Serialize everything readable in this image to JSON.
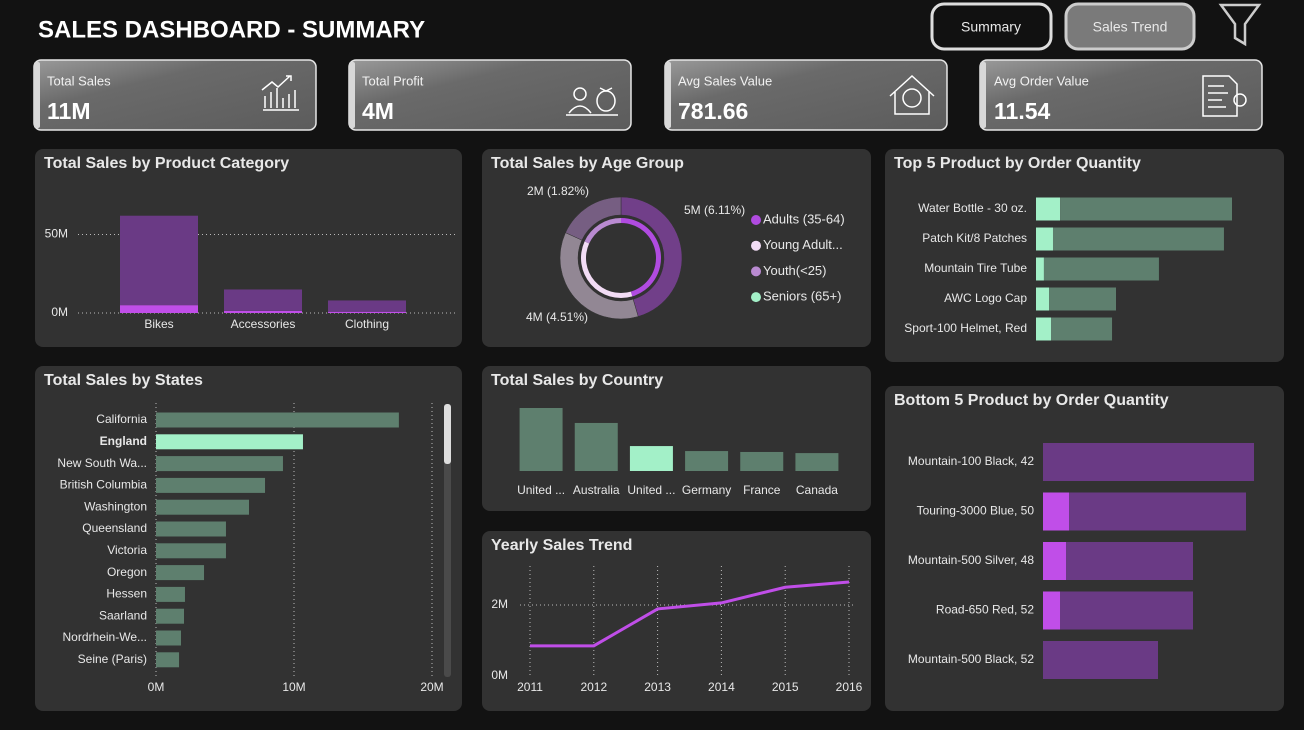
{
  "header": {
    "title": "SALES DASHBOARD - SUMMARY",
    "buttons": [
      "Summary",
      "Sales Trend"
    ]
  },
  "kpis": [
    {
      "label": "Total Sales",
      "value": "11M"
    },
    {
      "label": "Total Profit",
      "value": "4M"
    },
    {
      "label": "Avg Sales Value",
      "value": "781.66"
    },
    {
      "label": "Avg Order Value",
      "value": "11.54"
    }
  ],
  "chart_data": [
    {
      "type": "bar",
      "title": "Total Sales by Product Category",
      "categories": [
        "Bikes",
        "Accessories",
        "Clothing"
      ],
      "series": [
        {
          "color": "#c04ee8",
          "values": [
            5,
            1.3,
            0.8
          ]
        },
        {
          "color": "#6a3a85",
          "values": [
            57,
            13.7,
            7.2
          ]
        }
      ],
      "ylim": [
        0,
        65
      ],
      "yticks": [
        {
          "value": 0,
          "label": "0M"
        },
        {
          "value": 50,
          "label": "50M"
        }
      ],
      "grid": true
    },
    {
      "type": "donut",
      "title": "Total Sales by Age Group",
      "categories": [
        "Adults (35-64)",
        "Young Adult...",
        "Youth(<25)",
        "Seniors (65+)"
      ],
      "values": [
        5,
        4,
        2,
        null
      ],
      "value_labels": [
        "5M (6.11%)",
        "4M (4.51%)",
        "2M (1.82%)",
        null
      ],
      "colors": [
        "#b04be0",
        "#f2dcf5",
        "#b98ad1",
        "#a3f0c8"
      ]
    },
    {
      "type": "hbar",
      "title": "Top 5 Product by Order Quantity",
      "categories": [
        "Water Bottle - 30 oz.",
        "Patch Kit/8 Patches",
        "Mountain Tire Tube",
        "AWC Logo Cap",
        "Sport-100 Helmet, Red"
      ],
      "series": [
        {
          "color": "#a3f0c8",
          "values": [
            970,
            685,
            320,
            525,
            605
          ]
        },
        {
          "color": "#5e7f6e",
          "values": [
            6930,
            6890,
            4635,
            2700,
            2460
          ]
        }
      ]
    },
    {
      "type": "hbar",
      "title": "Total Sales by States",
      "categories": [
        "California",
        "England",
        "New South Wa...",
        "British Columbia",
        "Washington",
        "Queensland",
        "Victoria",
        "Oregon",
        "Hessen",
        "Saarland",
        "Nordrhein-We...",
        "Seine (Paris)"
      ],
      "values": [
        17.6,
        10.65,
        9.2,
        7.9,
        6.74,
        5.07,
        5.07,
        3.48,
        2.1,
        2.03,
        1.81,
        1.67
      ],
      "colors": [
        "#5e7f6e",
        "#a3f0c8",
        "#5e7f6e",
        "#5e7f6e",
        "#5e7f6e",
        "#5e7f6e",
        "#5e7f6e",
        "#5e7f6e",
        "#5e7f6e",
        "#5e7f6e",
        "#5e7f6e",
        "#5e7f6e"
      ],
      "xlim": [
        0,
        20
      ],
      "xticks": [
        {
          "value": 0,
          "label": "0M"
        },
        {
          "value": 10,
          "label": "10M"
        },
        {
          "value": 20,
          "label": "20M"
        }
      ],
      "grid": true
    },
    {
      "type": "bar",
      "title": "Total Sales by Country",
      "categories": [
        "United ...",
        "Australia",
        "United ...",
        "Germany",
        "France",
        "Canada"
      ],
      "values": [
        27.8,
        21.2,
        11,
        8.8,
        8.4,
        7.9
      ],
      "colors": [
        "#5e7f6e",
        "#5e7f6e",
        "#a3f0c8",
        "#5e7f6e",
        "#5e7f6e",
        "#5e7f6e"
      ]
    },
    {
      "type": "line",
      "title": "Yearly Sales Trend",
      "x": [
        2011,
        2012,
        2013,
        2014,
        2015,
        2016
      ],
      "values": [
        0.85,
        0.85,
        1.89,
        2.06,
        2.5,
        2.65
      ],
      "color": "#c04ee8",
      "xlim": [
        2011,
        2016
      ],
      "xticks": [
        2011,
        2012,
        2013,
        2014,
        2015,
        2016
      ],
      "ylim": [
        0,
        3.1
      ],
      "yticks": [
        {
          "value": 0,
          "label": "0M"
        },
        {
          "value": 2,
          "label": "2M"
        }
      ],
      "grid": true
    },
    {
      "type": "hbar",
      "title": "Bottom 5 Product by Order Quantity",
      "categories": [
        "Mountain-100 Black, 42",
        "Touring-3000 Blue, 50",
        "Mountain-500 Silver, 48",
        "Road-650 Red, 52",
        "Mountain-500 Black, 52"
      ],
      "series": [
        {
          "color": "#c04ee8",
          "values": [
            0,
            26,
            23,
            17,
            0
          ]
        },
        {
          "color": "#6a3a85",
          "values": [
            211,
            177,
            127,
            133,
            115
          ]
        }
      ]
    }
  ]
}
